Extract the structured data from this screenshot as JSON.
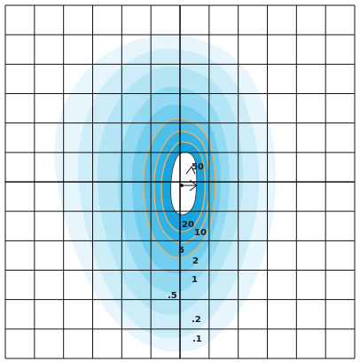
{
  "diagram": {
    "contour_labels": [
      {
        "text": "50"
      },
      {
        "text": "20"
      },
      {
        "text": "10"
      },
      {
        "text": "5"
      },
      {
        "text": "2"
      },
      {
        "text": "1"
      },
      {
        "text": ".5"
      },
      {
        "text": ".2"
      },
      {
        "text": ".1"
      }
    ],
    "colors": {
      "background": "#ffffff",
      "grid": "#111111",
      "contour_fills": [
        "#e6f6fc",
        "#cdeef9",
        "#b3e5f5",
        "#93daf2",
        "#72cdef",
        "#4dbfeb",
        "#2fb2e8",
        "#1aa4df"
      ],
      "contour_line": "#f0b25a",
      "center_fill": "#ffffff"
    }
  }
}
